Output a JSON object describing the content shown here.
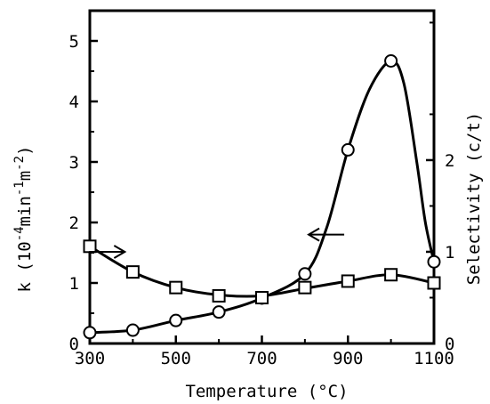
{
  "chart_data": {
    "type": "line",
    "xlabel": "Temperature (°C)",
    "ylabel_left": {
      "prefix": "k (10",
      "sup1": "-4",
      "mid": "min",
      "sup2": "-1",
      "mid2": "m",
      "sup3": "-2",
      "suffix": ")"
    },
    "ylabel_right": "Selectivity (c/t)",
    "xlim": [
      300,
      1100
    ],
    "ylim_left": [
      0,
      5.5
    ],
    "ylim_right": [
      0,
      3.63
    ],
    "x_ticks": [
      300,
      500,
      700,
      900,
      1100
    ],
    "y_ticks_left": [
      0,
      1,
      2,
      3,
      4,
      5
    ],
    "y_ticks_right": [
      0,
      1,
      2
    ],
    "grid": false,
    "series": [
      {
        "axis": "left",
        "marker": "circle",
        "x": [
          300,
          400,
          500,
          600,
          700,
          800,
          900,
          1000,
          1100
        ],
        "values": [
          0.18,
          0.22,
          0.38,
          0.52,
          0.75,
          1.15,
          3.2,
          4.67,
          1.35
        ],
        "curve_x": [
          300,
          400,
          500,
          600,
          700,
          800,
          850,
          900,
          950,
          1000,
          1030,
          1060,
          1080,
          1100
        ],
        "curve_y": [
          0.18,
          0.22,
          0.38,
          0.52,
          0.75,
          1.15,
          1.9,
          3.2,
          4.2,
          4.67,
          4.3,
          3.0,
          2.0,
          1.35
        ],
        "arrow_direction": "left",
        "arrow_at": [
          850,
          1.8
        ]
      },
      {
        "axis": "right",
        "marker": "square",
        "x": [
          300,
          400,
          500,
          600,
          700,
          800,
          900,
          1000,
          1100
        ],
        "values": [
          1.06,
          0.78,
          0.61,
          0.52,
          0.5,
          0.61,
          0.68,
          0.75,
          0.66
        ],
        "curve_x": [
          300,
          400,
          500,
          600,
          700,
          800,
          900,
          1000,
          1100
        ],
        "curve_y": [
          1.06,
          0.78,
          0.61,
          0.53,
          0.52,
          0.6,
          0.68,
          0.75,
          0.66
        ],
        "arrow_direction": "right",
        "arrow_at": [
          340,
          1.0
        ]
      }
    ]
  }
}
